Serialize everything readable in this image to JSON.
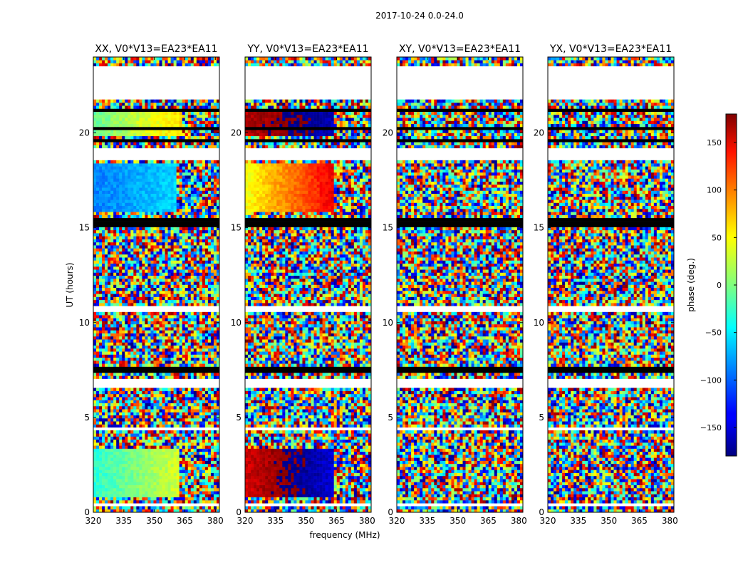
{
  "chart_data": {
    "type": "heatmap",
    "suptitle": "2017-10-24 0.0-24.0",
    "xlabel": "frequency (MHz)",
    "ylabel": "UT (hours)",
    "xlim": [
      320,
      382
    ],
    "ylim": [
      0,
      24
    ],
    "x_ticks": [
      320,
      335,
      350,
      365,
      380
    ],
    "y_ticks": [
      0,
      5,
      10,
      15,
      20
    ],
    "colorbar": {
      "label": "phase (deg.)",
      "range": [
        -180,
        180
      ],
      "ticks": [
        150,
        100,
        50,
        0,
        -50,
        -100,
        -150
      ],
      "tick_labels": [
        "150",
        "100",
        "50",
        "0",
        "−50",
        "−100",
        "−150"
      ],
      "colormap": "jet"
    },
    "panels": [
      {
        "title": "XX, V0*V13=EA23*EA11"
      },
      {
        "title": "YY, V0*V13=EA23*EA11"
      },
      {
        "title": "XY, V0*V13=EA23*EA11"
      },
      {
        "title": "YX, V0*V13=EA23*EA11"
      }
    ],
    "blank_bands_hours": [
      [
        21.8,
        23.5
      ],
      [
        18.6,
        19.2
      ],
      [
        6.5,
        7.0
      ],
      [
        10.6,
        10.8
      ],
      [
        4.35,
        4.5
      ],
      [
        0.4,
        0.55
      ]
    ],
    "flagged_bands_hours": [
      [
        15.1,
        15.45
      ],
      [
        14.85,
        14.95
      ],
      [
        7.35,
        7.6
      ],
      [
        19.5,
        19.6
      ],
      [
        20.15,
        20.25
      ],
      [
        21.2,
        21.3
      ]
    ],
    "coherent_segments": [
      {
        "panel": "XX",
        "t_range": [
          15.8,
          18.4
        ],
        "f_range": [
          320,
          361
        ],
        "phase_range": [
          -90,
          -60
        ]
      },
      {
        "panel": "XX",
        "t_range": [
          19.8,
          21.3
        ],
        "f_range": [
          320,
          364
        ],
        "phase_range": [
          -10,
          60
        ]
      },
      {
        "panel": "XX",
        "t_range": [
          0.8,
          3.4
        ],
        "f_range": [
          320,
          362
        ],
        "phase_range": [
          -30,
          30
        ]
      },
      {
        "panel": "YY",
        "t_range": [
          15.8,
          18.4
        ],
        "f_range": [
          320,
          363
        ],
        "phase_range": [
          40,
          140
        ]
      },
      {
        "panel": "YY",
        "t_range": [
          19.8,
          21.3
        ],
        "f_range": [
          320,
          363
        ],
        "phase_range": [
          160,
          -160
        ]
      },
      {
        "panel": "YY",
        "t_range": [
          0.8,
          3.4
        ],
        "f_range": [
          320,
          363
        ],
        "phase_range": [
          150,
          -150
        ]
      }
    ]
  }
}
